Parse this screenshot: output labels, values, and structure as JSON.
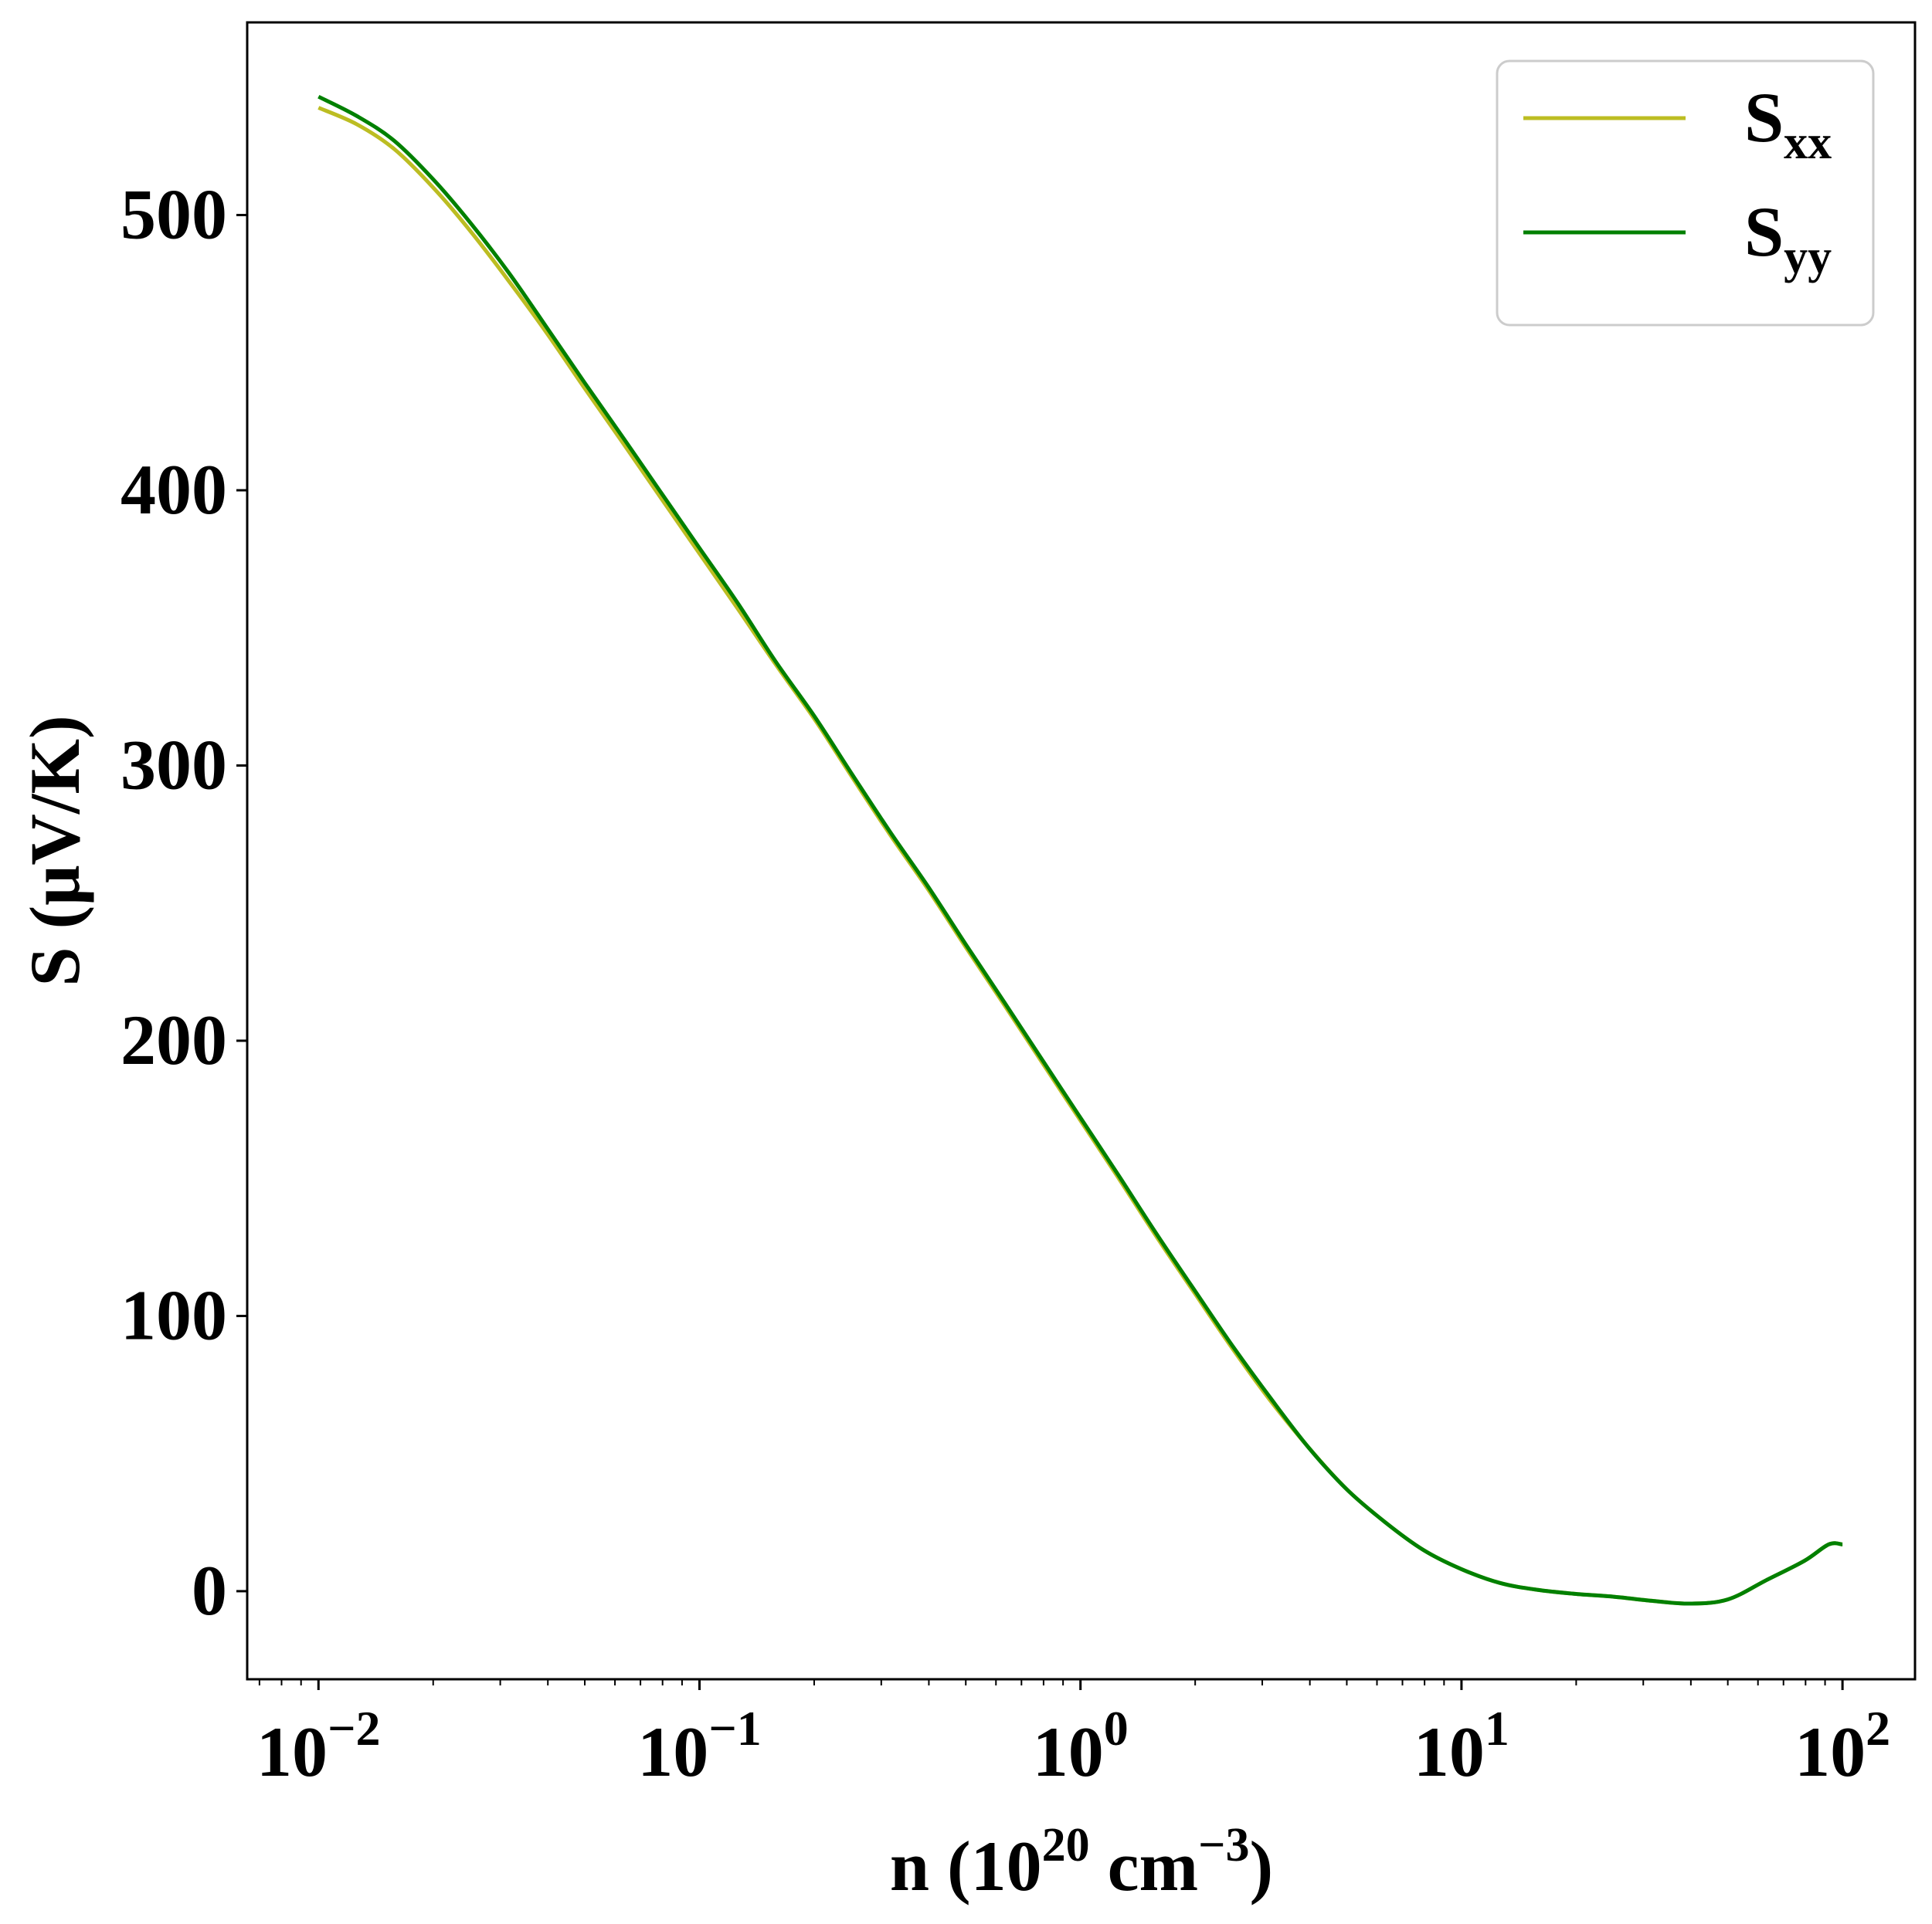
{
  "chart_data": {
    "type": "line",
    "xscale": "log",
    "xlim": [
      0.0065,
      155
    ],
    "ylim": [
      -32,
      570
    ],
    "grid": false,
    "legend_position": "top-right",
    "xlabel": {
      "base": "n (10",
      "sup": "20",
      "mid": " cm",
      "sup2": "−3",
      "end": ")"
    },
    "ylabel": "S (μV/K)",
    "yticks": [
      0,
      100,
      200,
      300,
      400,
      500
    ],
    "xticks": [
      {
        "value": 0.01,
        "base": "10",
        "exp": "−2"
      },
      {
        "value": 0.1,
        "base": "10",
        "exp": "−1"
      },
      {
        "value": 1,
        "base": "10",
        "exp": "0"
      },
      {
        "value": 10,
        "base": "10",
        "exp": "1"
      },
      {
        "value": 100,
        "base": "10",
        "exp": "2"
      }
    ],
    "series": [
      {
        "name": "S",
        "sub": "xx",
        "color": "#bcbd22",
        "x": [
          0.01,
          0.0126,
          0.0158,
          0.02,
          0.0251,
          0.0316,
          0.0398,
          0.05,
          0.0631,
          0.0794,
          0.1,
          0.126,
          0.158,
          0.2,
          0.251,
          0.316,
          0.398,
          0.5,
          0.631,
          0.794,
          1,
          1.26,
          1.58,
          2,
          2.51,
          3.16,
          3.98,
          5,
          6.31,
          7.94,
          10,
          12.6,
          15.8,
          20,
          25.1,
          31.6,
          39.8,
          50,
          63.1,
          79.4,
          92,
          100
        ],
        "y": [
          539,
          533,
          524,
          510,
          494,
          476,
          457,
          437,
          417,
          397,
          377,
          357,
          337,
          317,
          296,
          275,
          255,
          234,
          213,
          192,
          171,
          150,
          129,
          108,
          88,
          69,
          52,
          37,
          25,
          15,
          8,
          3,
          0.5,
          -1,
          -2,
          -3.5,
          -4.5,
          -3,
          4,
          11,
          17,
          17
        ]
      },
      {
        "name": "S",
        "sub": "yy",
        "color": "#008000",
        "x": [
          0.01,
          0.0126,
          0.0158,
          0.02,
          0.0251,
          0.0316,
          0.0398,
          0.05,
          0.0631,
          0.0794,
          0.1,
          0.126,
          0.158,
          0.2,
          0.251,
          0.316,
          0.398,
          0.5,
          0.631,
          0.794,
          1,
          1.26,
          1.58,
          2,
          2.51,
          3.16,
          3.98,
          5,
          6.31,
          7.94,
          10,
          12.6,
          15.8,
          20,
          25.1,
          31.6,
          39.8,
          50,
          63.1,
          79.4,
          92,
          100
        ],
        "y": [
          543,
          536,
          527,
          513,
          497,
          479,
          459,
          439,
          419,
          399,
          379,
          359,
          338,
          318,
          297,
          276,
          256,
          235,
          214,
          193,
          172,
          151,
          130,
          109,
          89,
          70,
          52,
          37,
          25,
          15,
          8,
          3,
          0.5,
          -1,
          -2,
          -3.5,
          -4.5,
          -3,
          4,
          11,
          17,
          17
        ]
      }
    ]
  }
}
